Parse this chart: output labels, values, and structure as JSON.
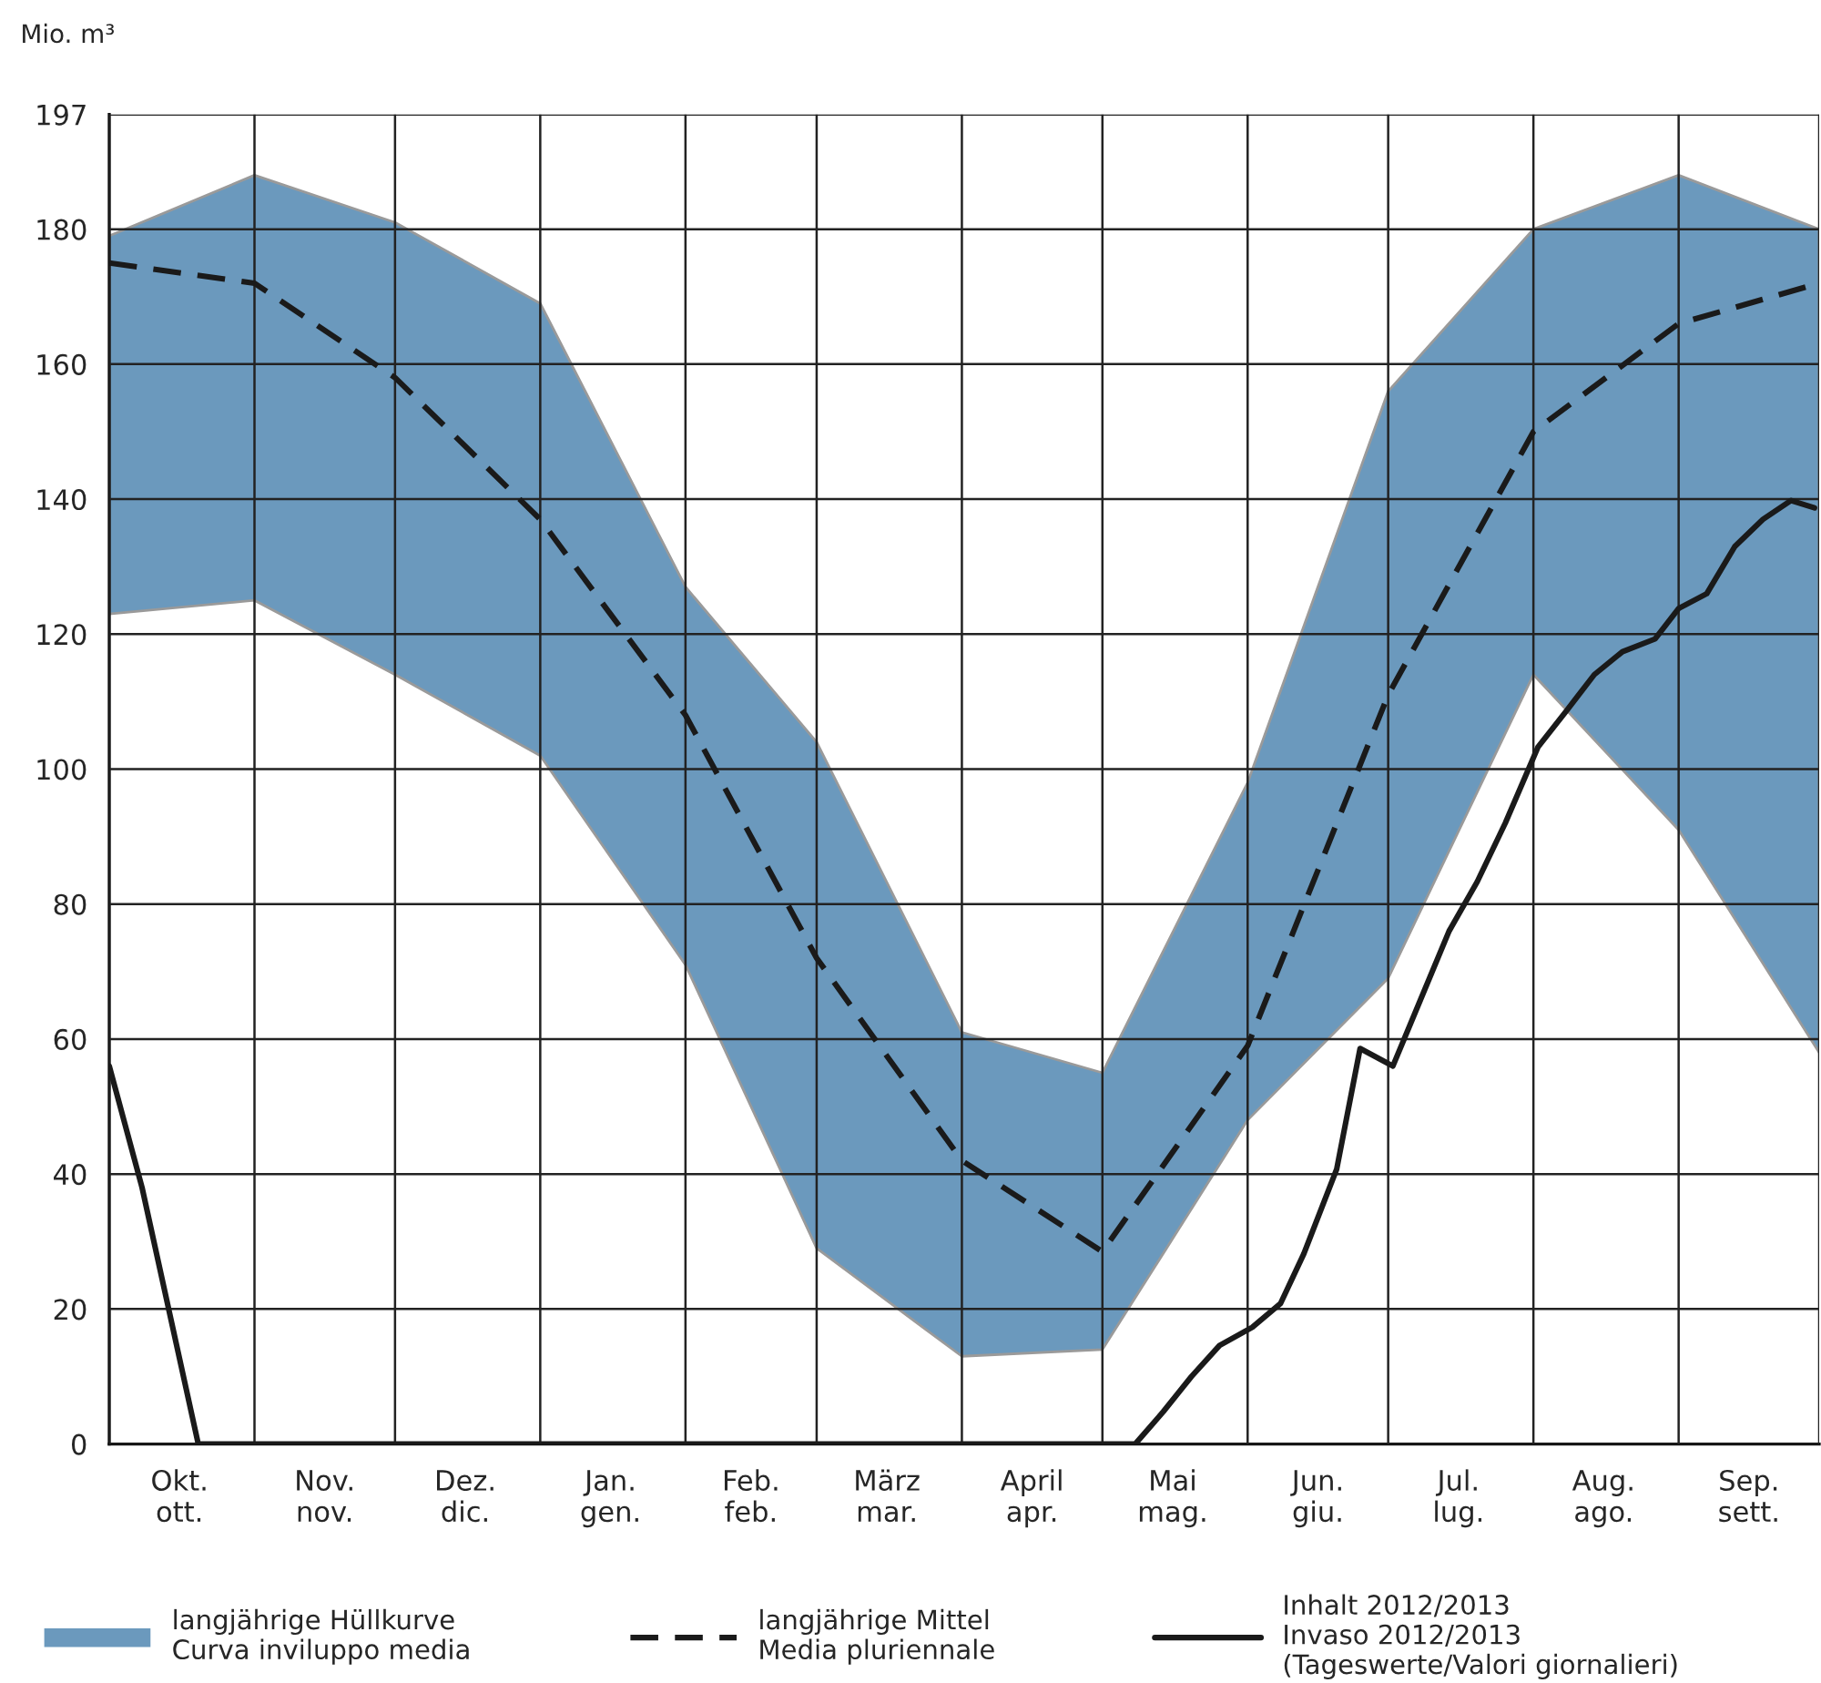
{
  "chart_data": {
    "type": "line",
    "ylabel": "Mio. m³",
    "xlim": [
      "2012-10-01",
      "2013-10-01"
    ],
    "xticks": [
      {
        "value": "2012-10-01",
        "label": null
      },
      {
        "value": "2012-11-01",
        "label": null
      },
      {
        "value": "2012-12-01",
        "label": null
      },
      {
        "value": "2013-01-01",
        "label": null
      },
      {
        "value": "2013-02-01",
        "label": null
      },
      {
        "value": "2013-03-01",
        "label": null
      },
      {
        "value": "2013-04-01",
        "label": null
      },
      {
        "value": "2013-05-01",
        "label": null
      },
      {
        "value": "2013-06-01",
        "label": null
      },
      {
        "value": "2013-07-01",
        "label": null
      },
      {
        "value": "2013-08-01",
        "label": null
      },
      {
        "value": "2013-09-01",
        "label": null
      },
      {
        "value": "2013-10-01",
        "label": null
      },
      {
        "value": "2012-10-16",
        "label": "Okt.\nott."
      },
      {
        "value": "2012-11-16",
        "label": "Nov.\nnov."
      },
      {
        "value": "2012-12-16",
        "label": "Dez.\ndic."
      },
      {
        "value": "2013-01-16",
        "label": "Jan.\ngen."
      },
      {
        "value": "2013-02-15",
        "label": "Feb.\nfeb."
      },
      {
        "value": "2013-03-16",
        "label": "März\nmar."
      },
      {
        "value": "2013-04-16",
        "label": "April\napr."
      },
      {
        "value": "2013-05-16",
        "label": "Mai\nmag."
      },
      {
        "value": "2013-06-16",
        "label": "Jun.\ngiu."
      },
      {
        "value": "2013-07-16",
        "label": "Jul.\nlug."
      },
      {
        "value": "2013-08-16",
        "label": "Aug.\nago."
      },
      {
        "value": "2013-09-16",
        "label": "Sep.\nsett."
      }
    ],
    "ylim": [
      0,
      197
    ],
    "yticks": [
      0,
      20,
      40,
      60,
      80,
      100,
      120,
      140,
      160,
      180,
      197
    ],
    "grid": true,
    "legend": "bottom",
    "series": [
      {
        "name": "langjährige Hüllkurve\nCurva inviluppo media",
        "type": "area",
        "color": "#6b99bd",
        "x": [
          "2012-10-01",
          "2012-11-01",
          "2012-12-01",
          "2013-01-01",
          "2013-02-01",
          "2013-03-01",
          "2013-04-01",
          "2013-05-01",
          "2013-06-01",
          "2013-07-01",
          "2013-08-01",
          "2013-09-01",
          "2013-10-01"
        ],
        "values": [
          null,
          null,
          null,
          null,
          null,
          null,
          null,
          null,
          null,
          null,
          null,
          null,
          null
        ],
        "lower": [
          123,
          125,
          114,
          102,
          71,
          29,
          13,
          14,
          48,
          69,
          114,
          91,
          58
        ],
        "upper": [
          179,
          188,
          181,
          169,
          127,
          104,
          61,
          55,
          98,
          156,
          180,
          188,
          180
        ]
      },
      {
        "name": "langjährige Mittel\nMedia pluriennale",
        "line_style": "dashed",
        "color": "#1a1a1a",
        "x": [
          "2012-10-01",
          "2012-11-01",
          "2012-12-01",
          "2013-01-01",
          "2013-02-01",
          "2013-03-01",
          "2013-04-01",
          "2013-05-01",
          "2013-06-01",
          "2013-07-01",
          "2013-08-01",
          "2013-09-01",
          "2013-10-01"
        ],
        "values": [
          175,
          172,
          158,
          137,
          108,
          72,
          42,
          28.5,
          59,
          111,
          150,
          166,
          172
        ]
      },
      {
        "name": "Inhalt 2012/2013\nInvaso 2012/2013\n(Tageswerte/Valori giornalieri)",
        "line_style": "solid",
        "color": "#1a1a1a",
        "x": [
          "2012-10-01",
          "2012-10-08",
          "2012-10-20",
          "2013-05-08",
          "2013-05-14",
          "2013-05-20",
          "2013-05-26",
          "2013-06-02",
          "2013-06-08",
          "2013-06-13",
          "2013-06-20",
          "2013-06-25",
          "2013-07-02",
          "2013-07-08",
          "2013-07-14",
          "2013-07-20",
          "2013-07-26",
          "2013-08-02",
          "2013-08-08",
          "2013-08-14",
          "2013-08-20",
          "2013-08-27",
          "2013-09-01",
          "2013-09-07",
          "2013-09-13",
          "2013-09-19",
          "2013-09-25",
          "2013-09-30"
        ],
        "values": [
          56,
          38,
          0,
          0,
          4.8,
          10,
          14.6,
          17.3,
          20.8,
          28.2,
          40.7,
          58.6,
          56,
          66,
          76,
          83.3,
          92,
          103.3,
          108.6,
          114,
          117.4,
          119.3,
          123.8,
          126,
          133,
          137,
          139.8,
          138.7
        ]
      }
    ]
  }
}
